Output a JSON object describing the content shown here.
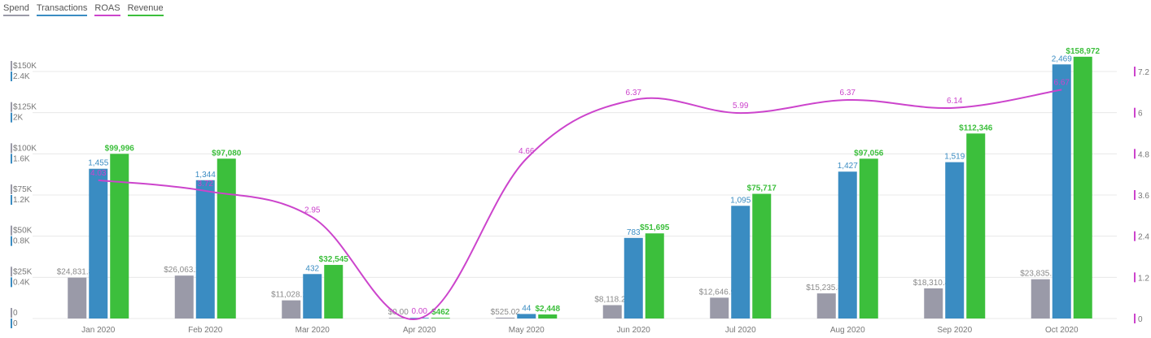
{
  "legend": [
    {
      "key": "spend",
      "label": "Spend"
    },
    {
      "key": "transactions",
      "label": "Transactions"
    },
    {
      "key": "roas",
      "label": "ROAS"
    },
    {
      "key": "revenue",
      "label": "Revenue"
    }
  ],
  "colors": {
    "spend": "#9a9aa8",
    "transactions": "#3a8cc2",
    "roas": "#cc44cc",
    "revenue": "#3cbf3c",
    "grid": "#e8e8e8"
  },
  "chart_data": {
    "type": "bar",
    "categories": [
      "Jan 2020",
      "Feb 2020",
      "Mar 2020",
      "Apr 2020",
      "May 2020",
      "Jun 2020",
      "Jul 2020",
      "Aug 2020",
      "Sep 2020",
      "Oct 2020"
    ],
    "series": [
      {
        "key": "spend",
        "name": "Spend",
        "type": "bar",
        "axis": "money",
        "values": [
          24831.8,
          26063.24,
          11028.15,
          0,
          525.02,
          8118.21,
          12646.92,
          15235.83,
          18310.44,
          23835.15
        ],
        "labels": [
          "$24,831.80",
          "$26,063.24",
          "$11,028.15",
          "$0.00",
          "$525.02",
          "$8,118.21",
          "$12,646.92",
          "$15,235.83",
          "$18,310.44",
          "$23,835.15"
        ]
      },
      {
        "key": "transactions",
        "name": "Transactions",
        "type": "bar",
        "axis": "count",
        "values": [
          1455,
          1344,
          432,
          0,
          44,
          783,
          1095,
          1427,
          1519,
          2469
        ],
        "labels": [
          "1,455",
          "1,344",
          "432",
          "",
          "44",
          "783",
          "1,095",
          "1,427",
          "1,519",
          "2,469"
        ]
      },
      {
        "key": "revenue",
        "name": "Revenue",
        "type": "bar",
        "axis": "money",
        "values": [
          99996,
          97080,
          32545,
          462,
          2448,
          51695,
          75717,
          97056,
          112346,
          158972
        ],
        "labels": [
          "$99,996",
          "$97,080",
          "$32,545",
          "$462",
          "$2,448",
          "$51,695",
          "$75,717",
          "$97,056",
          "$112,346",
          "$158,972"
        ]
      },
      {
        "key": "roas",
        "name": "ROAS",
        "type": "line",
        "axis": "roas",
        "values": [
          4.03,
          3.72,
          2.95,
          0.0,
          4.66,
          6.37,
          5.99,
          6.37,
          6.14,
          6.67
        ],
        "labels": [
          "4.03",
          "3.72",
          "2.95",
          "0.00",
          "4.66",
          "6.37",
          "5.99",
          "6.37",
          "6.14",
          "6.67"
        ]
      }
    ],
    "axes": {
      "money": {
        "range": [
          0,
          150000
        ],
        "ticks": [
          "0",
          "$25K",
          "$50K",
          "$75K",
          "$100K",
          "$125K",
          "$150K"
        ]
      },
      "count": {
        "range": [
          0,
          2400
        ],
        "ticks": [
          "0",
          "0.4K",
          "0.8K",
          "1.2K",
          "1.6K",
          "2K",
          "2.4K"
        ]
      },
      "roas": {
        "range": [
          0,
          7.2
        ],
        "ticks": [
          "0",
          "1.2",
          "2.4",
          "3.6",
          "4.8",
          "6",
          "7.2"
        ]
      }
    },
    "grid": true,
    "legend_position": "top-left"
  }
}
